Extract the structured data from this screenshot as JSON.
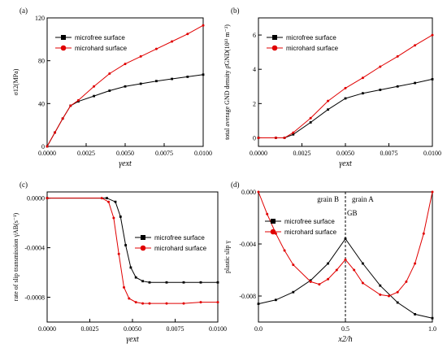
{
  "chart_data": [
    {
      "panel_label": "(a)",
      "type": "line",
      "ylabel": "σ12(MPa)",
      "xlabel": "γext",
      "xlim": [
        0,
        0.01
      ],
      "ylim": [
        0,
        120
      ],
      "xticks": [
        "0.0000",
        "0.0025",
        "0.0050",
        "0.0075",
        "0.0100"
      ],
      "yticks": [
        "0",
        "40",
        "80",
        "120"
      ],
      "legend_position": "top-left",
      "series": [
        {
          "name": "microfree surface",
          "color": "#000000",
          "marker": "square",
          "x": [
            0.0,
            0.0005,
            0.001,
            0.0015,
            0.002,
            0.003,
            0.004,
            0.005,
            0.006,
            0.007,
            0.008,
            0.009,
            0.01
          ],
          "y": [
            0,
            13,
            26,
            38,
            42,
            47,
            52,
            56,
            58.5,
            61,
            63,
            65,
            67
          ]
        },
        {
          "name": "microhard surface",
          "color": "#e00000",
          "marker": "circle",
          "x": [
            0.0,
            0.0005,
            0.001,
            0.0015,
            0.002,
            0.003,
            0.004,
            0.005,
            0.006,
            0.007,
            0.008,
            0.009,
            0.01
          ],
          "y": [
            0,
            13,
            26,
            38,
            43,
            56,
            68,
            77,
            84,
            91,
            98,
            105,
            113
          ]
        }
      ]
    },
    {
      "panel_label": "(b)",
      "type": "line",
      "ylabel": "total average GND density ρ̄GND(10¹³ m⁻²)",
      "xlabel": "γext",
      "xlim": [
        0,
        0.01
      ],
      "ylim": [
        -0.5,
        7
      ],
      "xticks": [
        "0.0000",
        "0.0025",
        "0.0050",
        "0.0075",
        "0.0100"
      ],
      "yticks": [
        "0",
        "2",
        "4",
        "6"
      ],
      "legend_position": "top-left",
      "series": [
        {
          "name": "microfree surface",
          "color": "#000000",
          "marker": "square",
          "x": [
            0.0,
            0.001,
            0.0015,
            0.002,
            0.003,
            0.004,
            0.005,
            0.006,
            0.007,
            0.008,
            0.009,
            0.01
          ],
          "y": [
            0,
            0,
            0,
            0.2,
            0.9,
            1.65,
            2.3,
            2.6,
            2.8,
            3.0,
            3.2,
            3.42
          ]
        },
        {
          "name": "microhard surface",
          "color": "#e00000",
          "marker": "circle",
          "x": [
            0.0,
            0.001,
            0.0015,
            0.002,
            0.003,
            0.004,
            0.005,
            0.006,
            0.007,
            0.008,
            0.009,
            0.01
          ],
          "y": [
            0,
            0,
            0,
            0.3,
            1.15,
            2.15,
            2.9,
            3.5,
            4.15,
            4.75,
            5.4,
            6.0
          ]
        }
      ]
    },
    {
      "panel_label": "(c)",
      "type": "line",
      "ylabel": "rate of slip transmission γ̇AB(s⁻¹)",
      "xlabel": "γext",
      "xlim": [
        0,
        0.01
      ],
      "ylim": [
        -0.001,
        5e-05
      ],
      "xticks": [
        "0.0000",
        "0.0025",
        "0.0050",
        "0.0075",
        "0.0100"
      ],
      "yticks": [
        "0.0000",
        "-0.0004",
        "-0.0008"
      ],
      "legend_position": "center-right",
      "series": [
        {
          "name": "microfree surface",
          "color": "#000000",
          "marker": "square",
          "x": [
            0.0,
            0.0035,
            0.004,
            0.0043,
            0.0046,
            0.0049,
            0.0052,
            0.0056,
            0.006,
            0.007,
            0.008,
            0.009,
            0.01
          ],
          "y": [
            0,
            0,
            -3e-05,
            -0.00015,
            -0.00038,
            -0.00056,
            -0.00064,
            -0.00067,
            -0.00068,
            -0.00068,
            -0.00068,
            -0.00068,
            -0.00068
          ]
        },
        {
          "name": "microhard surface",
          "color": "#e00000",
          "marker": "circle",
          "x": [
            0.0,
            0.0032,
            0.0036,
            0.0039,
            0.0042,
            0.0045,
            0.0048,
            0.0052,
            0.0056,
            0.006,
            0.007,
            0.008,
            0.009,
            0.01
          ],
          "y": [
            0,
            0,
            -3e-05,
            -0.00016,
            -0.00045,
            -0.00072,
            -0.00081,
            -0.00084,
            -0.00085,
            -0.00085,
            -0.00085,
            -0.00085,
            -0.00084,
            -0.00084
          ]
        }
      ]
    },
    {
      "panel_label": "(d)",
      "type": "line",
      "ylabel": "plastic slip γ",
      "xlabel": "x2/h",
      "xlim": [
        0,
        1
      ],
      "ylim": [
        -0.01,
        0
      ],
      "xticks": [
        "0.0",
        "0.5",
        "1.0"
      ],
      "yticks": [
        "0.000",
        "-0.004",
        "-0.008"
      ],
      "annotations": [
        "grain B",
        "grain A",
        "GB"
      ],
      "legend_position": "top-left",
      "series": [
        {
          "name": "microfree surface",
          "color": "#000000",
          "marker": "square",
          "x": [
            0.0,
            0.1,
            0.2,
            0.3,
            0.4,
            0.5,
            0.6,
            0.7,
            0.8,
            0.9,
            1.0
          ],
          "y": [
            -0.0086,
            -0.0083,
            -0.0077,
            -0.0068,
            -0.0055,
            -0.0036,
            -0.0055,
            -0.0072,
            -0.0085,
            -0.0094,
            -0.0097
          ]
        },
        {
          "name": "microhard surface",
          "color": "#e00000",
          "marker": "circle",
          "x": [
            0.0,
            0.05,
            0.1,
            0.15,
            0.2,
            0.3,
            0.35,
            0.4,
            0.45,
            0.5,
            0.55,
            0.6,
            0.7,
            0.75,
            0.8,
            0.85,
            0.9,
            0.95,
            1.0
          ],
          "y": [
            0.0,
            -0.0017,
            -0.0032,
            -0.0045,
            -0.0056,
            -0.0069,
            -0.0071,
            -0.0067,
            -0.006,
            -0.0052,
            -0.006,
            -0.007,
            -0.0079,
            -0.008,
            -0.0077,
            -0.0069,
            -0.0055,
            -0.0032,
            0.0
          ]
        }
      ]
    }
  ]
}
